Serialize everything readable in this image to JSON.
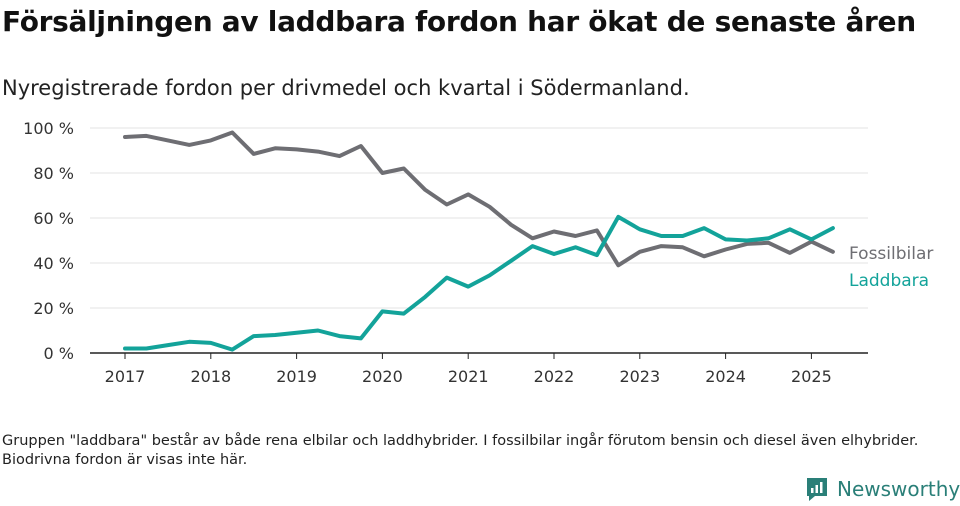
{
  "title": "Försäljningen av laddbara fordon har ökat de senaste åren",
  "subtitle": "Nyregistrerade fordon per drivmedel och kvartal i Södermanland.",
  "footnote": "Gruppen \"laddbara\" består av både rena elbilar och laddhybrider. I fossilbilar ingår förutom bensin och diesel även elhybrider. Biodrivna fordon är visas inte här.",
  "brand": {
    "name": "Newsworthy",
    "icon": "newsworthy-logo-icon",
    "color": "#2a7f78"
  },
  "chart_data": {
    "type": "line",
    "x_unit": "quarter",
    "x": [
      "2017 Q1",
      "2017 Q2",
      "2017 Q3",
      "2017 Q4",
      "2018 Q1",
      "2018 Q2",
      "2018 Q3",
      "2018 Q4",
      "2019 Q1",
      "2019 Q2",
      "2019 Q3",
      "2019 Q4",
      "2020 Q1",
      "2020 Q2",
      "2020 Q3",
      "2020 Q4",
      "2021 Q1",
      "2021 Q2",
      "2021 Q3",
      "2021 Q4",
      "2022 Q1",
      "2022 Q2",
      "2022 Q3",
      "2022 Q4",
      "2023 Q1",
      "2023 Q2",
      "2023 Q3",
      "2023 Q4",
      "2024 Q1",
      "2024 Q2",
      "2024 Q3",
      "2024 Q4",
      "2025 Q1",
      "2025 Q2"
    ],
    "series": [
      {
        "name": "Fossilbilar",
        "color": "#6e6e73",
        "values": [
          96,
          96.5,
          94.5,
          92.5,
          94.5,
          98,
          88.5,
          91,
          90.5,
          89.5,
          87.5,
          92,
          80,
          82,
          72.5,
          66,
          70.5,
          65,
          57,
          51,
          54,
          52,
          54.5,
          39,
          45,
          47.5,
          47,
          43,
          46,
          48.5,
          49,
          44.5,
          49.5,
          45
        ]
      },
      {
        "name": "Laddbara",
        "color": "#13a39a",
        "values": [
          2,
          2,
          3.5,
          5,
          4.5,
          1.5,
          7.5,
          8,
          9,
          10,
          7.5,
          6.5,
          18.5,
          17.5,
          25,
          33.5,
          29.5,
          34.5,
          41,
          47.5,
          44,
          47,
          43.5,
          60.5,
          55,
          52,
          52,
          55.5,
          50.5,
          50,
          51,
          55,
          50.5,
          55.5
        ]
      }
    ],
    "x_tick_labels": [
      "2017",
      "2018",
      "2019",
      "2020",
      "2021",
      "2022",
      "2023",
      "2024",
      "2025"
    ],
    "y_tick_labels": [
      "0 %",
      "20 %",
      "40 %",
      "60 %",
      "80 %",
      "100 %"
    ],
    "ylim": [
      0,
      100
    ],
    "y_ticks": [
      0,
      20,
      40,
      60,
      80,
      100
    ],
    "grid": true,
    "legend": "direct labels at right end of lines",
    "xlabel": "",
    "ylabel": ""
  }
}
